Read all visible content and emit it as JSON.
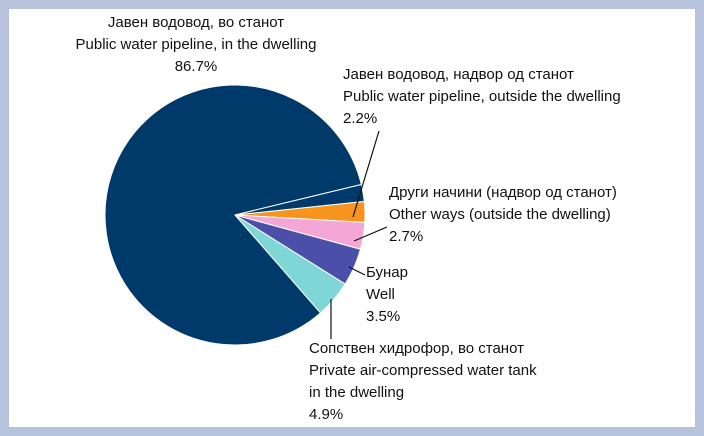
{
  "chart_data": {
    "type": "pie",
    "slices": [
      {
        "label_mk": "Јавен водовод, во станот",
        "label_en": "Public water pipeline, in the dwelling",
        "value": 86.7,
        "value_label": "86.7%",
        "color": "#003a6b"
      },
      {
        "label_mk": "Јавен водовод, надвор од станот",
        "label_en": "Public water pipeline, outside the dwelling",
        "value": 2.2,
        "value_label": "2.2%",
        "color": "#003a6b"
      },
      {
        "label_mk": "Други начини (надвор од станот)",
        "label_en": "Other ways (outside the dwelling)",
        "value": 2.7,
        "value_label": "2.7%",
        "color": "#f7941d"
      },
      {
        "label_mk": "Бунар",
        "label_en": "Well",
        "value": 3.5,
        "value_label": "3.5%",
        "color": "#f4a6d7"
      },
      {
        "label_mk": "Сопствен хидрофор, во станот",
        "label_en": "Private air-compressed water tank",
        "label_en_2": "in the dwelling",
        "value": 4.9,
        "value_label": "4.9%",
        "color": "#4b4fa8"
      }
    ],
    "extra_slice_color": "#7fd6d6"
  }
}
